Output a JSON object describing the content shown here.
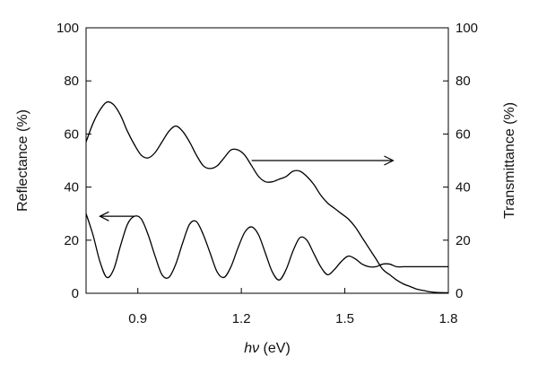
{
  "chart_data": {
    "type": "line",
    "xlabel_main": "hν",
    "xlabel_unit": " (eV)",
    "ylabel_left": "Reflectance (%)",
    "ylabel_right": "Transmittance (%)",
    "xlim": [
      0.75,
      1.8
    ],
    "ylim_left": [
      0,
      100
    ],
    "ylim_right": [
      0,
      100
    ],
    "x_ticks": [
      0.9,
      1.2,
      1.5,
      1.8
    ],
    "x_tick_labels": [
      "0.9",
      "1.2",
      "1.5",
      "1.8"
    ],
    "y_ticks": [
      0,
      20,
      40,
      60,
      80,
      100
    ],
    "y_tick_labels": [
      "0",
      "20",
      "40",
      "60",
      "80",
      "100"
    ],
    "grid": false,
    "series": [
      {
        "axis": "right",
        "x": [
          0.75,
          0.77,
          0.79,
          0.81,
          0.83,
          0.85,
          0.87,
          0.89,
          0.91,
          0.93,
          0.95,
          0.97,
          0.99,
          1.01,
          1.03,
          1.05,
          1.07,
          1.09,
          1.11,
          1.13,
          1.15,
          1.17,
          1.19,
          1.21,
          1.23,
          1.25,
          1.27,
          1.29,
          1.31,
          1.33,
          1.35,
          1.37,
          1.39,
          1.41,
          1.43,
          1.45,
          1.47,
          1.49,
          1.51,
          1.53,
          1.55,
          1.57,
          1.59,
          1.61,
          1.63,
          1.65,
          1.67,
          1.69,
          1.71,
          1.73,
          1.75,
          1.77,
          1.8
        ],
        "y": [
          57,
          64,
          69,
          72,
          71,
          67,
          61,
          56,
          52,
          51,
          53,
          57,
          61,
          63,
          61,
          57,
          52,
          48,
          47,
          48,
          51,
          54,
          54,
          52,
          48,
          44,
          42,
          42,
          43,
          44,
          46,
          46,
          44,
          41,
          37,
          34,
          32,
          30,
          28,
          25,
          21,
          17,
          13,
          9,
          7,
          5,
          3.5,
          2.5,
          1.5,
          1,
          0.5,
          0.3,
          0.2
        ]
      },
      {
        "axis": "left",
        "x": [
          0.75,
          0.77,
          0.79,
          0.81,
          0.83,
          0.85,
          0.87,
          0.89,
          0.91,
          0.93,
          0.95,
          0.97,
          0.99,
          1.01,
          1.03,
          1.05,
          1.07,
          1.09,
          1.11,
          1.13,
          1.15,
          1.17,
          1.19,
          1.21,
          1.23,
          1.25,
          1.27,
          1.29,
          1.31,
          1.33,
          1.35,
          1.37,
          1.39,
          1.41,
          1.43,
          1.45,
          1.47,
          1.49,
          1.51,
          1.53,
          1.55,
          1.57,
          1.59,
          1.61,
          1.63,
          1.65,
          1.67,
          1.69,
          1.71,
          1.73,
          1.75,
          1.77,
          1.8
        ],
        "y": [
          30,
          22,
          12,
          6,
          9,
          18,
          26,
          29,
          28,
          22,
          14,
          7,
          6,
          11,
          19,
          26,
          27,
          22,
          15,
          8,
          6,
          10,
          17,
          23,
          25,
          22,
          15,
          8,
          5,
          9,
          16,
          21,
          20,
          15,
          10,
          7,
          9,
          12,
          14,
          13,
          11,
          10,
          10,
          11,
          11,
          10,
          10,
          10,
          10,
          10,
          10,
          10,
          10
        ]
      }
    ],
    "annotations": [
      {
        "type": "arrow",
        "direction": "right",
        "x_from": 1.23,
        "x_to": 1.64,
        "y": 50,
        "meaning": "points to right axis"
      },
      {
        "type": "arrow",
        "direction": "left",
        "x_from": 0.89,
        "x_to": 0.79,
        "y": 29,
        "meaning": "points to left axis"
      }
    ]
  }
}
